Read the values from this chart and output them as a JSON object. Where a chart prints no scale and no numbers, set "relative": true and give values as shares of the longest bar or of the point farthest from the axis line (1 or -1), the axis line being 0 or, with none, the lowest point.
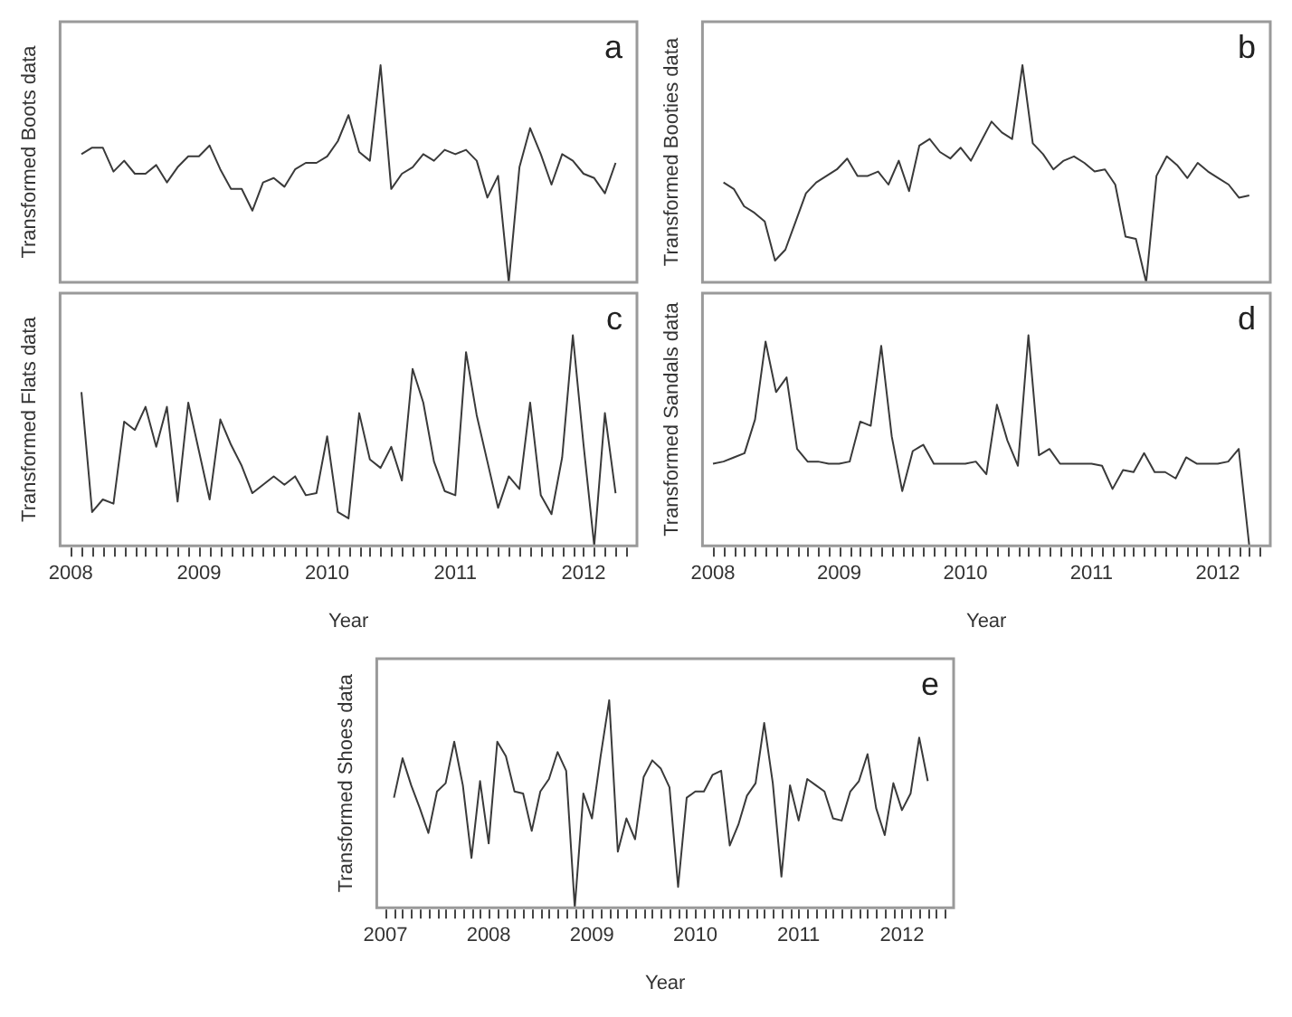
{
  "chart_data": [
    {
      "type": "line",
      "ylabel": "Transformed Boots data",
      "annotations": [
        "a"
      ],
      "relative": true,
      "color": "#3a3a3a",
      "categories": [
        null,
        null,
        null,
        null,
        null,
        null,
        null,
        null,
        null,
        null,
        null,
        null,
        null,
        null,
        null,
        null,
        null,
        null,
        null,
        null,
        null,
        null,
        null,
        null,
        null,
        null,
        null,
        null,
        null,
        null,
        null,
        null,
        null,
        null,
        null,
        null,
        null,
        null,
        null,
        null,
        null,
        null,
        null,
        null,
        null,
        null,
        null,
        null,
        null,
        null,
        null
      ],
      "values": [
        0.59,
        0.62,
        0.62,
        0.51,
        0.56,
        0.5,
        0.5,
        0.54,
        0.46,
        0.53,
        0.58,
        0.58,
        0.63,
        0.52,
        0.43,
        0.43,
        0.33,
        0.46,
        0.48,
        0.44,
        0.52,
        0.55,
        0.55,
        0.58,
        0.65,
        0.77,
        0.6,
        0.56,
        1,
        0.43,
        0.5,
        0.53,
        0.59,
        0.56,
        0.61,
        0.59,
        0.61,
        0.56,
        0.39,
        0.49,
        0,
        0.53,
        0.71,
        0.59,
        0.45,
        0.59,
        0.56,
        0.5,
        0.48,
        0.41,
        0.55
      ]
    },
    {
      "type": "line",
      "ylabel": "Transformed Booties data",
      "annotations": [
        "b"
      ],
      "relative": true,
      "color": "#3a3a3a",
      "categories": [
        null,
        null,
        null,
        null,
        null,
        null,
        null,
        null,
        null,
        null,
        null,
        null,
        null,
        null,
        null,
        null,
        null,
        null,
        null,
        null,
        null,
        null,
        null,
        null,
        null,
        null,
        null,
        null,
        null,
        null,
        null,
        null,
        null,
        null,
        null,
        null,
        null,
        null,
        null,
        null,
        null,
        null,
        null,
        null,
        null,
        null,
        null,
        null,
        null,
        null,
        null,
        null
      ],
      "values": [
        0.46,
        0.43,
        0.35,
        0.32,
        0.28,
        0.1,
        0.15,
        0.28,
        0.41,
        0.46,
        0.49,
        0.52,
        0.57,
        0.49,
        0.49,
        0.51,
        0.45,
        0.56,
        0.42,
        0.63,
        0.66,
        0.6,
        0.57,
        0.62,
        0.56,
        0.65,
        0.74,
        0.69,
        0.66,
        1,
        0.64,
        0.59,
        0.52,
        0.56,
        0.58,
        0.55,
        0.51,
        0.52,
        0.45,
        0.21,
        0.2,
        0,
        0.49,
        0.58,
        0.54,
        0.48,
        0.55,
        0.51,
        0.48,
        0.45,
        0.39,
        0.4
      ]
    },
    {
      "type": "line",
      "ylabel": "Transformed Flats data",
      "xlabel": "Year",
      "annotations": [
        "c"
      ],
      "relative": true,
      "xlim": [
        "2007-12",
        "2012-06"
      ],
      "color": "#3a3a3a",
      "xticks": [
        "2008",
        {
          "value": "2008-02",
          "label": null
        },
        {
          "value": "2008-03",
          "label": null
        },
        {
          "value": "2008-04",
          "label": null
        },
        {
          "value": "2008-05",
          "label": null
        },
        {
          "value": "2008-06",
          "label": null
        },
        {
          "value": "2008-07",
          "label": null
        },
        {
          "value": "2008-08",
          "label": null
        },
        {
          "value": "2008-09",
          "label": null
        },
        {
          "value": "2008-10",
          "label": null
        },
        {
          "value": "2008-11",
          "label": null
        },
        {
          "value": "2008-12",
          "label": null
        },
        "2009",
        {
          "value": "2009-02",
          "label": null
        },
        {
          "value": "2009-03",
          "label": null
        },
        {
          "value": "2009-04",
          "label": null
        },
        {
          "value": "2009-05",
          "label": null
        },
        {
          "value": "2009-06",
          "label": null
        },
        {
          "value": "2009-07",
          "label": null
        },
        {
          "value": "2009-08",
          "label": null
        },
        {
          "value": "2009-09",
          "label": null
        },
        {
          "value": "2009-10",
          "label": null
        },
        {
          "value": "2009-11",
          "label": null
        },
        {
          "value": "2009-12",
          "label": null
        },
        "2010",
        {
          "value": "2010-02",
          "label": null
        },
        {
          "value": "2010-03",
          "label": null
        },
        {
          "value": "2010-04",
          "label": null
        },
        {
          "value": "2010-05",
          "label": null
        },
        {
          "value": "2010-06",
          "label": null
        },
        {
          "value": "2010-07",
          "label": null
        },
        {
          "value": "2010-08",
          "label": null
        },
        {
          "value": "2010-09",
          "label": null
        },
        {
          "value": "2010-10",
          "label": null
        },
        {
          "value": "2010-11",
          "label": null
        },
        {
          "value": "2010-12",
          "label": null
        },
        "2011",
        {
          "value": "2011-02",
          "label": null
        },
        {
          "value": "2011-03",
          "label": null
        },
        {
          "value": "2011-04",
          "label": null
        },
        {
          "value": "2011-05",
          "label": null
        },
        {
          "value": "2011-06",
          "label": null
        },
        {
          "value": "2011-07",
          "label": null
        },
        {
          "value": "2011-08",
          "label": null
        },
        {
          "value": "2011-09",
          "label": null
        },
        {
          "value": "2011-10",
          "label": null
        },
        {
          "value": "2011-11",
          "label": null
        },
        {
          "value": "2011-12",
          "label": null
        },
        "2012",
        {
          "value": "2012-02",
          "label": null
        },
        {
          "value": "2012-03",
          "label": null
        },
        {
          "value": "2012-04",
          "label": null
        },
        {
          "value": "2012-05",
          "label": null
        }
      ],
      "x": [
        "2008-02",
        "2008-03",
        "2008-04",
        "2008-05",
        "2008-06",
        "2008-07",
        "2008-08",
        "2008-09",
        "2008-10",
        "2008-11",
        "2008-12",
        "2009-01",
        "2009-02",
        "2009-03",
        "2009-04",
        "2009-05",
        "2009-06",
        "2009-07",
        "2009-08",
        "2009-09",
        "2009-10",
        "2009-11",
        "2009-12",
        "2010-01",
        "2010-02",
        "2010-03",
        "2010-04",
        "2010-05",
        "2010-06",
        "2010-07",
        "2010-08",
        "2010-09",
        "2010-10",
        "2010-11",
        "2010-12",
        "2011-01",
        "2011-02",
        "2011-03",
        "2011-04",
        "2011-05",
        "2011-06",
        "2011-07",
        "2011-08",
        "2011-09",
        "2011-10",
        "2011-11",
        "2011-12",
        "2012-01",
        "2012-02",
        "2012-03",
        "2012-04"
      ],
      "values": [
        0.73,
        0.16,
        0.22,
        0.2,
        0.59,
        0.55,
        0.66,
        0.47,
        0.66,
        0.21,
        0.68,
        0.45,
        0.22,
        0.6,
        0.48,
        0.38,
        0.25,
        0.29,
        0.33,
        0.29,
        0.33,
        0.24,
        0.25,
        0.52,
        0.16,
        0.13,
        0.63,
        0.41,
        0.37,
        0.47,
        0.31,
        0.84,
        0.68,
        0.4,
        0.26,
        0.24,
        0.92,
        0.62,
        0.4,
        0.18,
        0.33,
        0.27,
        0.68,
        0.24,
        0.15,
        0.42,
        1,
        0.48,
        0,
        0.63,
        0.25
      ]
    },
    {
      "type": "line",
      "ylabel": "Transformed Sandals data",
      "xlabel": "Year",
      "annotations": [
        "d"
      ],
      "relative": true,
      "xlim": [
        "2007-12",
        "2012-06"
      ],
      "color": "#3a3a3a",
      "xticks": [
        "2008",
        {
          "value": "2008-02",
          "label": null
        },
        {
          "value": "2008-03",
          "label": null
        },
        {
          "value": "2008-04",
          "label": null
        },
        {
          "value": "2008-05",
          "label": null
        },
        {
          "value": "2008-06",
          "label": null
        },
        {
          "value": "2008-07",
          "label": null
        },
        {
          "value": "2008-08",
          "label": null
        },
        {
          "value": "2008-09",
          "label": null
        },
        {
          "value": "2008-10",
          "label": null
        },
        {
          "value": "2008-11",
          "label": null
        },
        {
          "value": "2008-12",
          "label": null
        },
        "2009",
        {
          "value": "2009-02",
          "label": null
        },
        {
          "value": "2009-03",
          "label": null
        },
        {
          "value": "2009-04",
          "label": null
        },
        {
          "value": "2009-05",
          "label": null
        },
        {
          "value": "2009-06",
          "label": null
        },
        {
          "value": "2009-07",
          "label": null
        },
        {
          "value": "2009-08",
          "label": null
        },
        {
          "value": "2009-09",
          "label": null
        },
        {
          "value": "2009-10",
          "label": null
        },
        {
          "value": "2009-11",
          "label": null
        },
        {
          "value": "2009-12",
          "label": null
        },
        "2010",
        {
          "value": "2010-02",
          "label": null
        },
        {
          "value": "2010-03",
          "label": null
        },
        {
          "value": "2010-04",
          "label": null
        },
        {
          "value": "2010-05",
          "label": null
        },
        {
          "value": "2010-06",
          "label": null
        },
        {
          "value": "2010-07",
          "label": null
        },
        {
          "value": "2010-08",
          "label": null
        },
        {
          "value": "2010-09",
          "label": null
        },
        {
          "value": "2010-10",
          "label": null
        },
        {
          "value": "2010-11",
          "label": null
        },
        {
          "value": "2010-12",
          "label": null
        },
        "2011",
        {
          "value": "2011-02",
          "label": null
        },
        {
          "value": "2011-03",
          "label": null
        },
        {
          "value": "2011-04",
          "label": null
        },
        {
          "value": "2011-05",
          "label": null
        },
        {
          "value": "2011-06",
          "label": null
        },
        {
          "value": "2011-07",
          "label": null
        },
        {
          "value": "2011-08",
          "label": null
        },
        {
          "value": "2011-09",
          "label": null
        },
        {
          "value": "2011-10",
          "label": null
        },
        {
          "value": "2011-11",
          "label": null
        },
        {
          "value": "2011-12",
          "label": null
        },
        "2012",
        {
          "value": "2012-02",
          "label": null
        },
        {
          "value": "2012-03",
          "label": null
        },
        {
          "value": "2012-04",
          "label": null
        },
        {
          "value": "2012-05",
          "label": null
        }
      ],
      "x": [
        "2008-01",
        "2008-02",
        "2008-03",
        "2008-04",
        "2008-05",
        "2008-06",
        "2008-07",
        "2008-08",
        "2008-09",
        "2008-10",
        "2008-11",
        "2008-12",
        "2009-01",
        "2009-02",
        "2009-03",
        "2009-04",
        "2009-05",
        "2009-06",
        "2009-07",
        "2009-08",
        "2009-09",
        "2009-10",
        "2009-11",
        "2009-12",
        "2010-01",
        "2010-02",
        "2010-03",
        "2010-04",
        "2010-05",
        "2010-06",
        "2010-07",
        "2010-08",
        "2010-09",
        "2010-10",
        "2010-11",
        "2010-12",
        "2011-01",
        "2011-02",
        "2011-03",
        "2011-04",
        "2011-05",
        "2011-06",
        "2011-07",
        "2011-08",
        "2011-09",
        "2011-10",
        "2011-11",
        "2011-12",
        "2012-01",
        "2012-02",
        "2012-03",
        "2012-04"
      ],
      "values": [
        0.39,
        0.4,
        0.42,
        0.44,
        0.6,
        0.97,
        0.73,
        0.8,
        0.46,
        0.4,
        0.4,
        0.39,
        0.39,
        0.4,
        0.59,
        0.57,
        0.95,
        0.52,
        0.26,
        0.45,
        0.48,
        0.39,
        0.39,
        0.39,
        0.39,
        0.4,
        0.34,
        0.67,
        0.5,
        0.38,
        1,
        0.43,
        0.46,
        0.39,
        0.39,
        0.39,
        0.39,
        0.38,
        0.27,
        0.36,
        0.35,
        0.44,
        0.35,
        0.35,
        0.32,
        0.42,
        0.39,
        0.39,
        0.39,
        0.4,
        0.46,
        0
      ]
    },
    {
      "type": "line",
      "ylabel": "Transformed Shoes data",
      "xlabel": "Year",
      "annotations": [
        "e"
      ],
      "relative": true,
      "xlim": [
        "2006-12",
        "2012-07"
      ],
      "color": "#3a3a3a",
      "xticks": [
        "2007",
        {
          "value": "2007-02",
          "label": null
        },
        {
          "value": "2007-03",
          "label": null
        },
        {
          "value": "2007-04",
          "label": null
        },
        {
          "value": "2007-05",
          "label": null
        },
        {
          "value": "2007-06",
          "label": null
        },
        {
          "value": "2007-07",
          "label": null
        },
        {
          "value": "2007-08",
          "label": null
        },
        {
          "value": "2007-09",
          "label": null
        },
        {
          "value": "2007-10",
          "label": null
        },
        {
          "value": "2007-11",
          "label": null
        },
        {
          "value": "2007-12",
          "label": null
        },
        "2008",
        {
          "value": "2008-02",
          "label": null
        },
        {
          "value": "2008-03",
          "label": null
        },
        {
          "value": "2008-04",
          "label": null
        },
        {
          "value": "2008-05",
          "label": null
        },
        {
          "value": "2008-06",
          "label": null
        },
        {
          "value": "2008-07",
          "label": null
        },
        {
          "value": "2008-08",
          "label": null
        },
        {
          "value": "2008-09",
          "label": null
        },
        {
          "value": "2008-10",
          "label": null
        },
        {
          "value": "2008-11",
          "label": null
        },
        {
          "value": "2008-12",
          "label": null
        },
        "2009",
        {
          "value": "2009-02",
          "label": null
        },
        {
          "value": "2009-03",
          "label": null
        },
        {
          "value": "2009-04",
          "label": null
        },
        {
          "value": "2009-05",
          "label": null
        },
        {
          "value": "2009-06",
          "label": null
        },
        {
          "value": "2009-07",
          "label": null
        },
        {
          "value": "2009-08",
          "label": null
        },
        {
          "value": "2009-09",
          "label": null
        },
        {
          "value": "2009-10",
          "label": null
        },
        {
          "value": "2009-11",
          "label": null
        },
        {
          "value": "2009-12",
          "label": null
        },
        "2010",
        {
          "value": "2010-02",
          "label": null
        },
        {
          "value": "2010-03",
          "label": null
        },
        {
          "value": "2010-04",
          "label": null
        },
        {
          "value": "2010-05",
          "label": null
        },
        {
          "value": "2010-06",
          "label": null
        },
        {
          "value": "2010-07",
          "label": null
        },
        {
          "value": "2010-08",
          "label": null
        },
        {
          "value": "2010-09",
          "label": null
        },
        {
          "value": "2010-10",
          "label": null
        },
        {
          "value": "2010-11",
          "label": null
        },
        {
          "value": "2010-12",
          "label": null
        },
        "2011",
        {
          "value": "2011-02",
          "label": null
        },
        {
          "value": "2011-03",
          "label": null
        },
        {
          "value": "2011-04",
          "label": null
        },
        {
          "value": "2011-05",
          "label": null
        },
        {
          "value": "2011-06",
          "label": null
        },
        {
          "value": "2011-07",
          "label": null
        },
        {
          "value": "2011-08",
          "label": null
        },
        {
          "value": "2011-09",
          "label": null
        },
        {
          "value": "2011-10",
          "label": null
        },
        {
          "value": "2011-11",
          "label": null
        },
        {
          "value": "2011-12",
          "label": null
        },
        "2012",
        {
          "value": "2012-02",
          "label": null
        },
        {
          "value": "2012-03",
          "label": null
        },
        {
          "value": "2012-04",
          "label": null
        },
        {
          "value": "2012-05",
          "label": null
        },
        {
          "value": "2012-06",
          "label": null
        }
      ],
      "x": [
        "2007-02",
        "2007-03",
        "2007-04",
        "2007-05",
        "2007-06",
        "2007-07",
        "2007-08",
        "2007-09",
        "2007-10",
        "2007-11",
        "2007-12",
        "2008-01",
        "2008-02",
        "2008-03",
        "2008-04",
        "2008-05",
        "2008-06",
        "2008-07",
        "2008-08",
        "2008-09",
        "2008-10",
        "2008-11",
        "2008-12",
        "2009-01",
        "2009-02",
        "2009-03",
        "2009-04",
        "2009-05",
        "2009-06",
        "2009-07",
        "2009-08",
        "2009-09",
        "2009-10",
        "2009-11",
        "2009-12",
        "2010-01",
        "2010-02",
        "2010-03",
        "2010-04",
        "2010-05",
        "2010-06",
        "2010-07",
        "2010-08",
        "2010-09",
        "2010-10",
        "2010-11",
        "2010-12",
        "2011-01",
        "2011-02",
        "2011-03",
        "2011-04",
        "2011-05",
        "2011-06",
        "2011-07",
        "2011-08",
        "2011-09",
        "2011-10",
        "2011-11",
        "2011-12",
        "2012-01",
        "2012-02",
        "2012-03",
        "2012-04"
      ],
      "values": [
        0.53,
        0.72,
        0.59,
        0.48,
        0.36,
        0.56,
        0.6,
        0.8,
        0.59,
        0.24,
        0.61,
        0.31,
        0.8,
        0.73,
        0.56,
        0.55,
        0.37,
        0.56,
        0.62,
        0.75,
        0.66,
        0,
        0.55,
        0.43,
        0.73,
        1,
        0.27,
        0.43,
        0.33,
        0.63,
        0.71,
        0.67,
        0.58,
        0.1,
        0.53,
        0.56,
        0.56,
        0.64,
        0.66,
        0.3,
        0.4,
        0.54,
        0.6,
        0.89,
        0.6,
        0.15,
        0.59,
        0.42,
        0.62,
        0.59,
        0.56,
        0.43,
        0.42,
        0.56,
        0.61,
        0.74,
        0.48,
        0.35,
        0.6,
        0.47,
        0.55,
        0.82,
        0.61
      ]
    }
  ]
}
